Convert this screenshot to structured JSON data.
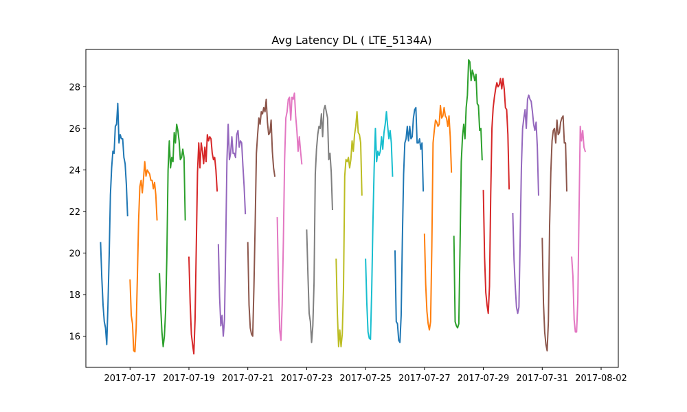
{
  "chart_data": {
    "type": "line",
    "title": "Avg Latency DL ( LTE_5134A)",
    "xlabel": "",
    "ylabel": "",
    "x_is_date": true,
    "xlim": [
      "2017-07-15T12:00",
      "2017-08-02T14:00"
    ],
    "ylim": [
      14.5,
      29.8
    ],
    "x_ticks": [
      "2017-07-17",
      "2017-07-19",
      "2017-07-21",
      "2017-07-23",
      "2017-07-25",
      "2017-07-27",
      "2017-07-29",
      "2017-07-31",
      "2017-08-02"
    ],
    "y_ticks": [
      16,
      18,
      20,
      22,
      24,
      26,
      28
    ],
    "grid": false,
    "legend": "none",
    "colors": [
      "#1f77b4",
      "#ff7f0e",
      "#2ca02c",
      "#d62728",
      "#9467bd",
      "#8c564b",
      "#e377c2",
      "#7f7f7f",
      "#bcbd22",
      "#17becf"
    ],
    "series": [
      {
        "start": "2017-07-16T00:00",
        "values": [
          20.5,
          18.8,
          17.5,
          16.7,
          16.4,
          15.6,
          17.5,
          19.9,
          22.8,
          24.1,
          24.9,
          24.8,
          26.1,
          26.2,
          27.2,
          25.3,
          25.7,
          25.5,
          25.5,
          24.6,
          24.3,
          23.3,
          21.8
        ]
      },
      {
        "start": "2017-07-17T00:00",
        "values": [
          18.7,
          17.0,
          16.6,
          15.3,
          15.25,
          16.4,
          18.9,
          21.6,
          23.2,
          23.5,
          22.9,
          23.6,
          24.4,
          23.7,
          24.0,
          23.9,
          23.8,
          23.5,
          23.5,
          23.1,
          23.4,
          22.8,
          21.6
        ]
      },
      {
        "start": "2017-07-18T00:00",
        "values": [
          19.0,
          17.4,
          16.2,
          15.5,
          16.0,
          17.2,
          19.8,
          24.0,
          25.4,
          24.1,
          24.6,
          24.4,
          25.8,
          25.3,
          26.2,
          25.9,
          25.4,
          24.5,
          24.6,
          25.0,
          24.6,
          21.6
        ]
      },
      {
        "start": "2017-07-19T00:00",
        "values": [
          19.8,
          17.6,
          16.1,
          15.6,
          15.15,
          16.8,
          20.3,
          23.9,
          25.3,
          24.1,
          25.3,
          24.9,
          24.3,
          25.1,
          24.4,
          25.7,
          25.4,
          25.6,
          25.5,
          24.8,
          24.5,
          24.6,
          24.0,
          23.0
        ]
      },
      {
        "start": "2017-07-20T00:00",
        "values": [
          20.4,
          17.9,
          16.5,
          17.0,
          16.0,
          16.8,
          20.4,
          24.5,
          26.2,
          24.5,
          24.8,
          25.6,
          24.8,
          24.8,
          24.6,
          25.7,
          25.9,
          25.1,
          25.4,
          25.3,
          24.2,
          23.2,
          21.9
        ]
      },
      {
        "start": "2017-07-21T00:00",
        "values": [
          20.5,
          17.5,
          16.4,
          16.1,
          16.0,
          18.4,
          21.4,
          24.8,
          25.7,
          26.5,
          26.2,
          26.8,
          26.7,
          27.0,
          26.8,
          27.4,
          26.3,
          25.7,
          25.8,
          26.4,
          24.9,
          24.1,
          23.7
        ]
      },
      {
        "start": "2017-07-22T00:00",
        "values": [
          21.7,
          18.6,
          16.3,
          15.8,
          17.5,
          20.6,
          24.5,
          26.5,
          26.8,
          27.4,
          27.5,
          26.4,
          27.5,
          27.4,
          27.7,
          26.6,
          25.9,
          24.9,
          25.6,
          24.9,
          24.3
        ]
      },
      {
        "start": "2017-07-23T00:00",
        "values": [
          21.1,
          19.0,
          17.1,
          16.7,
          15.7,
          16.5,
          18.6,
          23.8,
          25.0,
          25.7,
          26.1,
          26.0,
          26.7,
          25.6,
          26.9,
          27.1,
          26.8,
          26.5,
          24.5,
          24.8,
          23.9,
          22.1
        ]
      },
      {
        "start": "2017-07-24T00:00",
        "values": [
          19.7,
          17.1,
          15.5,
          16.3,
          15.5,
          16.1,
          18.3,
          23.7,
          24.5,
          24.4,
          24.6,
          24.1,
          24.5,
          25.4,
          24.9,
          25.7,
          26.1,
          26.8,
          25.8,
          25.7,
          25.3,
          22.8
        ]
      },
      {
        "start": "2017-07-25T00:00",
        "values": [
          19.7,
          17.6,
          16.2,
          15.9,
          15.85,
          18.2,
          21.5,
          24.1,
          26.0,
          24.4,
          24.9,
          24.7,
          24.9,
          25.6,
          25.0,
          25.8,
          26.2,
          26.8,
          26.1,
          25.5,
          25.9,
          25.3,
          23.7
        ]
      },
      {
        "start": "2017-07-26T00:00",
        "values": [
          20.1,
          16.7,
          16.6,
          15.8,
          15.7,
          17.0,
          20.7,
          23.8,
          25.3,
          25.5,
          26.1,
          25.4,
          26.1,
          25.5,
          25.6,
          26.5,
          26.9,
          27.0,
          25.3,
          25.3,
          25.5,
          25.0,
          25.3,
          23.0
        ]
      },
      {
        "start": "2017-07-27T00:00",
        "values": [
          20.9,
          18.5,
          17.2,
          16.6,
          16.3,
          16.7,
          20.3,
          25.3,
          25.9,
          26.4,
          26.3,
          26.1,
          26.2,
          27.1,
          26.5,
          26.6,
          27.0,
          26.6,
          26.5,
          26.1,
          26.6,
          25.6,
          23.9
        ]
      },
      {
        "start": "2017-07-28T00:00",
        "values": [
          20.8,
          16.7,
          16.5,
          16.4,
          16.6,
          20.3,
          24.4,
          25.6,
          26.2,
          25.5,
          27.0,
          27.6,
          29.3,
          29.2,
          28.3,
          28.8,
          28.6,
          28.3,
          28.6,
          27.2,
          27.1,
          25.9,
          26.0,
          24.5
        ]
      },
      {
        "start": "2017-07-29T00:00",
        "values": [
          23.0,
          19.8,
          18.1,
          17.5,
          17.1,
          18.4,
          22.8,
          26.0,
          27.0,
          27.5,
          27.9,
          28.2,
          28.0,
          28.1,
          28.4,
          27.9,
          28.4,
          27.9,
          27.0,
          26.9,
          25.7,
          23.1
        ]
      },
      {
        "start": "2017-07-30T00:00",
        "values": [
          21.9,
          19.7,
          18.4,
          17.4,
          17.1,
          17.4,
          20.6,
          24.1,
          26.0,
          26.5,
          26.9,
          26.0,
          27.4,
          27.6,
          27.4,
          27.3,
          26.8,
          26.2,
          25.9,
          26.3,
          25.1,
          22.8
        ]
      },
      {
        "start": "2017-07-31T00:00",
        "values": [
          20.7,
          17.6,
          16.2,
          15.6,
          15.3,
          16.7,
          21.3,
          23.9,
          25.4,
          25.9,
          26.0,
          25.3,
          26.4,
          25.7,
          25.8,
          26.3,
          26.5,
          26.6,
          25.3,
          25.3,
          23.0
        ]
      },
      {
        "start": "2017-08-01T00:00",
        "values": [
          19.8,
          18.9,
          16.8,
          16.2,
          16.2,
          17.7,
          22.0,
          26.1,
          25.4,
          25.9,
          25.1,
          24.9
        ]
      }
    ]
  }
}
